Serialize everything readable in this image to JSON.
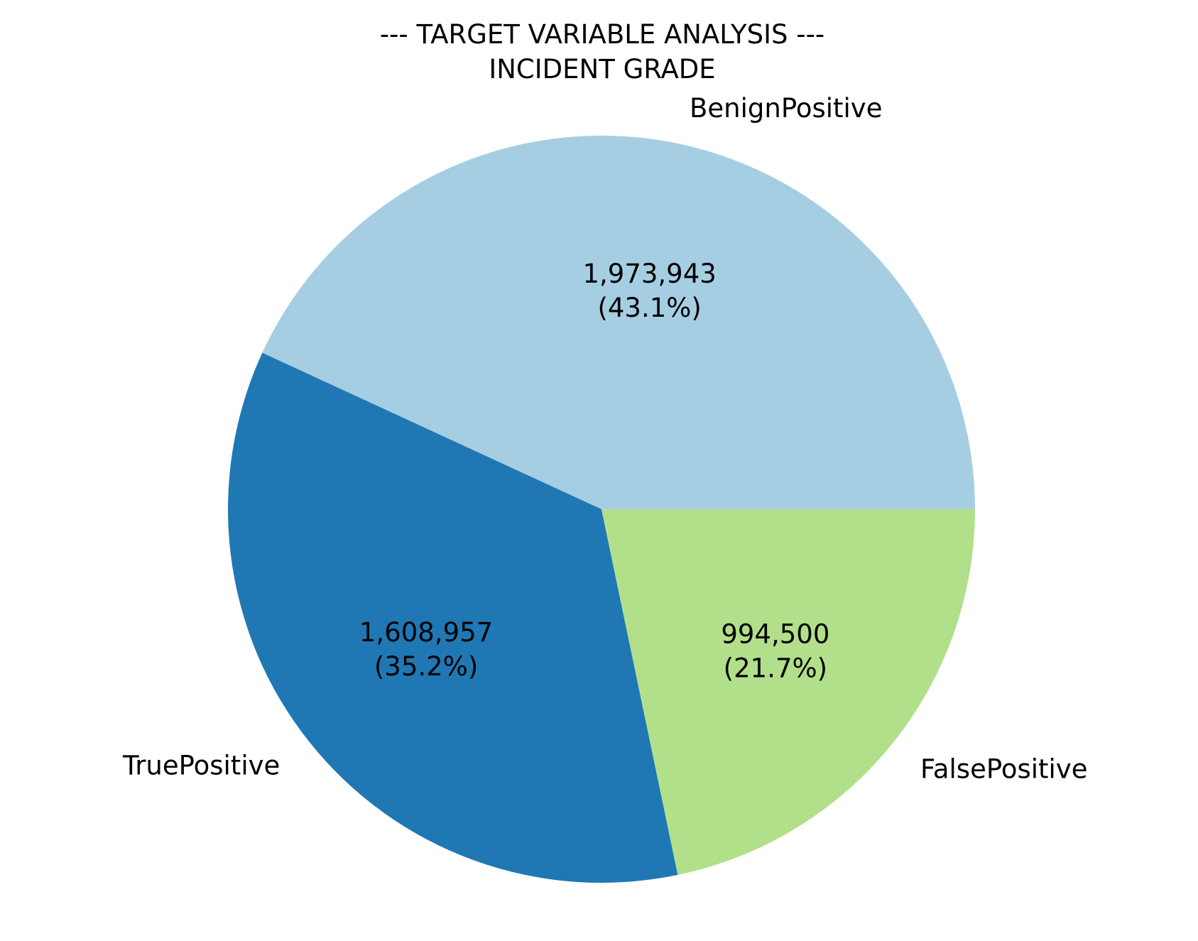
{
  "chart_data": {
    "type": "pie",
    "title": "--- TARGET VARIABLE ANALYSIS ---",
    "subtitle": "INCIDENT GRADE",
    "start_angle_deg": 0,
    "direction": "counterclockwise",
    "slices": [
      {
        "label": "BenignPositive",
        "value": 1973943,
        "value_label": "1,973,943",
        "percent_label": "(43.1%)",
        "color": "#a6cee3"
      },
      {
        "label": "TruePositive",
        "value": 1608957,
        "value_label": "1,608,957",
        "percent_label": "(35.2%)",
        "color": "#1f78b4"
      },
      {
        "label": "FalsePositive",
        "value": 994500,
        "value_label": "994,500",
        "percent_label": "(21.7%)",
        "color": "#b2df8a"
      }
    ]
  }
}
